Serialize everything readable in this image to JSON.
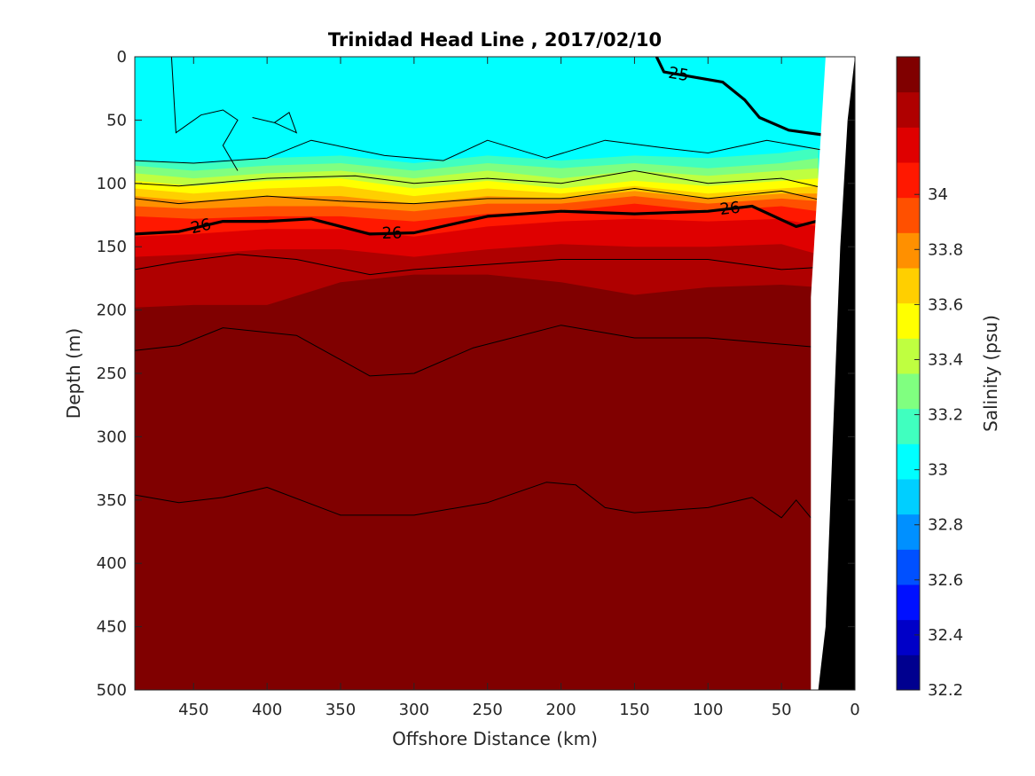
{
  "chart_data": {
    "type": "heatmap",
    "subtype": "filled-contour-section",
    "title": "Trinidad Head Line , 2017/02/10",
    "xlabel": "Offshore Distance (km)",
    "ylabel": "Depth (m)",
    "xlim": [
      490,
      0
    ],
    "x_reversed": true,
    "ylim": [
      0,
      500
    ],
    "y_reversed": true,
    "xticks": [
      450,
      400,
      350,
      300,
      250,
      200,
      150,
      100,
      50,
      0
    ],
    "xtick_labels": [
      "450",
      "400",
      "350",
      "300",
      "250",
      "200",
      "150",
      "100",
      "50",
      "0"
    ],
    "yticks": [
      0,
      50,
      100,
      150,
      200,
      250,
      300,
      350,
      400,
      450,
      500
    ],
    "ytick_labels": [
      "0",
      "50",
      "100",
      "150",
      "200",
      "250",
      "300",
      "350",
      "400",
      "450",
      "500"
    ],
    "colorbar": {
      "label": "Salinity (psu)",
      "range": [
        32.2,
        34.5
      ],
      "step": 0.1,
      "ticks": [
        32.2,
        32.4,
        32.6,
        32.8,
        33,
        33.2,
        33.4,
        33.6,
        33.8,
        34
      ],
      "tick_labels": [
        "32.2",
        "32.4",
        "32.6",
        "32.8",
        "33",
        "33.2",
        "33.4",
        "33.6",
        "33.8",
        "34"
      ],
      "colors": [
        "#00008F",
        "#0000C8",
        "#0010FF",
        "#0050FF",
        "#0090FF",
        "#00CFFF",
        "#00FFFF",
        "#40FFBF",
        "#80FF80",
        "#BFFF40",
        "#FFFF00",
        "#FFCF00",
        "#FF9000",
        "#FF5000",
        "#FF1800",
        "#DF0000",
        "#AF0000",
        "#800000"
      ]
    },
    "layers": [
      {
        "value": 32.8,
        "depth_profile": [
          [
            490,
            0
          ],
          [
            0,
            0
          ]
        ]
      },
      {
        "value": 32.9,
        "depth_profile": [
          [
            490,
            82
          ],
          [
            440,
            84
          ],
          [
            400,
            80
          ],
          [
            350,
            78
          ],
          [
            300,
            84
          ],
          [
            250,
            78
          ],
          [
            200,
            82
          ],
          [
            150,
            78
          ],
          [
            100,
            80
          ],
          [
            50,
            76
          ],
          [
            25,
            72
          ]
        ]
      },
      {
        "value": 33.0,
        "depth_profile": [
          [
            490,
            86
          ],
          [
            450,
            90
          ],
          [
            400,
            86
          ],
          [
            350,
            84
          ],
          [
            300,
            90
          ],
          [
            250,
            84
          ],
          [
            200,
            88
          ],
          [
            150,
            84
          ],
          [
            100,
            88
          ],
          [
            50,
            84
          ],
          [
            25,
            80
          ]
        ]
      },
      {
        "value": 33.1,
        "depth_profile": [
          [
            490,
            92
          ],
          [
            450,
            96
          ],
          [
            400,
            92
          ],
          [
            350,
            90
          ],
          [
            300,
            96
          ],
          [
            250,
            90
          ],
          [
            200,
            96
          ],
          [
            150,
            90
          ],
          [
            100,
            94
          ],
          [
            50,
            90
          ],
          [
            25,
            88
          ]
        ]
      },
      {
        "value": 33.2,
        "depth_profile": [
          [
            490,
            98
          ],
          [
            450,
            102
          ],
          [
            400,
            98
          ],
          [
            350,
            96
          ],
          [
            300,
            104
          ],
          [
            250,
            98
          ],
          [
            200,
            104
          ],
          [
            150,
            98
          ],
          [
            100,
            102
          ],
          [
            50,
            98
          ],
          [
            25,
            96
          ]
        ]
      },
      {
        "value": 33.3,
        "depth_profile": [
          [
            490,
            104
          ],
          [
            450,
            108
          ],
          [
            400,
            104
          ],
          [
            350,
            102
          ],
          [
            300,
            110
          ],
          [
            250,
            104
          ],
          [
            200,
            108
          ],
          [
            150,
            102
          ],
          [
            100,
            108
          ],
          [
            50,
            104
          ],
          [
            25,
            102
          ]
        ]
      },
      {
        "value": 33.4,
        "depth_profile": [
          [
            490,
            110
          ],
          [
            450,
            114
          ],
          [
            400,
            110
          ],
          [
            350,
            110
          ],
          [
            300,
            116
          ],
          [
            250,
            110
          ],
          [
            200,
            112
          ],
          [
            150,
            106
          ],
          [
            100,
            112
          ],
          [
            50,
            108
          ],
          [
            25,
            108
          ]
        ]
      },
      {
        "value": 33.5,
        "depth_profile": [
          [
            490,
            118
          ],
          [
            450,
            120
          ],
          [
            400,
            118
          ],
          [
            350,
            118
          ],
          [
            300,
            122
          ],
          [
            250,
            116
          ],
          [
            200,
            116
          ],
          [
            150,
            110
          ],
          [
            100,
            116
          ],
          [
            50,
            112
          ],
          [
            25,
            114
          ]
        ]
      },
      {
        "value": 33.6,
        "depth_profile": [
          [
            490,
            126
          ],
          [
            450,
            128
          ],
          [
            400,
            126
          ],
          [
            350,
            126
          ],
          [
            300,
            130
          ],
          [
            250,
            124
          ],
          [
            200,
            122
          ],
          [
            150,
            116
          ],
          [
            100,
            122
          ],
          [
            50,
            118
          ],
          [
            25,
            122
          ]
        ]
      },
      {
        "value": 33.7,
        "depth_profile": [
          [
            490,
            142
          ],
          [
            450,
            140
          ],
          [
            400,
            136
          ],
          [
            350,
            136
          ],
          [
            300,
            142
          ],
          [
            250,
            134
          ],
          [
            200,
            130
          ],
          [
            150,
            128
          ],
          [
            100,
            130
          ],
          [
            50,
            128
          ],
          [
            25,
            134
          ]
        ]
      },
      {
        "value": 33.8,
        "depth_profile": [
          [
            490,
            158
          ],
          [
            450,
            156
          ],
          [
            400,
            152
          ],
          [
            350,
            152
          ],
          [
            300,
            158
          ],
          [
            250,
            152
          ],
          [
            200,
            148
          ],
          [
            150,
            150
          ],
          [
            100,
            150
          ],
          [
            50,
            148
          ],
          [
            25,
            156
          ]
        ]
      },
      {
        "value": 33.9,
        "depth_profile": [
          [
            490,
            198
          ],
          [
            450,
            196
          ],
          [
            400,
            196
          ],
          [
            350,
            178
          ],
          [
            300,
            172
          ],
          [
            250,
            172
          ],
          [
            200,
            178
          ],
          [
            150,
            188
          ],
          [
            100,
            182
          ],
          [
            50,
            180
          ],
          [
            25,
            182
          ]
        ]
      },
      {
        "value": 34.0,
        "depth_profile": [
          [
            490,
            378
          ],
          [
            470,
            350
          ],
          [
            450,
            344
          ],
          [
            430,
            390
          ],
          [
            400,
            420
          ],
          [
            350,
            432
          ],
          [
            300,
            440
          ],
          [
            250,
            426
          ],
          [
            220,
            420
          ],
          [
            200,
            328
          ],
          [
            180,
            290
          ],
          [
            160,
            310
          ],
          [
            150,
            336
          ],
          [
            120,
            310
          ],
          [
            100,
            260
          ],
          [
            80,
            290
          ],
          [
            60,
            230
          ],
          [
            40,
            240
          ],
          [
            28,
            280
          ],
          [
            25,
            290
          ]
        ]
      },
      {
        "value": 34.1,
        "depth_profile": [
          [
            490,
            480
          ],
          [
            470,
            470
          ],
          [
            450,
            490
          ],
          [
            420,
            500
          ],
          [
            220,
            500
          ],
          [
            200,
            440
          ],
          [
            180,
            470
          ],
          [
            160,
            495
          ],
          [
            100,
            500
          ],
          [
            80,
            460
          ],
          [
            60,
            440
          ],
          [
            40,
            450
          ],
          [
            28,
            480
          ],
          [
            25,
            485
          ]
        ]
      }
    ],
    "contours": [
      {
        "value": 25,
        "label": "25",
        "bold": true,
        "depth_profile": [
          [
            135,
            0
          ],
          [
            130,
            12
          ],
          [
            110,
            16
          ],
          [
            90,
            20
          ],
          [
            75,
            34
          ],
          [
            65,
            48
          ],
          [
            45,
            58
          ],
          [
            20,
            62
          ]
        ]
      },
      {
        "value": 26,
        "label": "26",
        "bold": true,
        "depth_profile": [
          [
            490,
            140
          ],
          [
            460,
            138
          ],
          [
            430,
            130
          ],
          [
            400,
            130
          ],
          [
            370,
            128
          ],
          [
            330,
            140
          ],
          [
            300,
            139
          ],
          [
            250,
            126
          ],
          [
            200,
            122
          ],
          [
            150,
            124
          ],
          [
            100,
            122
          ],
          [
            70,
            118
          ],
          [
            40,
            134
          ],
          [
            20,
            128
          ]
        ]
      },
      {
        "value": 25.5,
        "label": "",
        "bold": false,
        "depth_profile": [
          [
            490,
            82
          ],
          [
            450,
            84
          ],
          [
            400,
            80
          ],
          [
            370,
            66
          ],
          [
            320,
            78
          ],
          [
            280,
            82
          ],
          [
            250,
            66
          ],
          [
            210,
            80
          ],
          [
            170,
            66
          ],
          [
            130,
            72
          ],
          [
            100,
            76
          ],
          [
            60,
            66
          ],
          [
            20,
            74
          ]
        ]
      },
      {
        "value": 25.6,
        "label": "",
        "bold": false,
        "depth_profile": [
          [
            490,
            100
          ],
          [
            460,
            102
          ],
          [
            400,
            96
          ],
          [
            340,
            94
          ],
          [
            300,
            100
          ],
          [
            250,
            96
          ],
          [
            200,
            100
          ],
          [
            150,
            90
          ],
          [
            100,
            100
          ],
          [
            50,
            96
          ],
          [
            20,
            104
          ]
        ]
      },
      {
        "value": 25.8,
        "label": "",
        "bold": false,
        "depth_profile": [
          [
            490,
            112
          ],
          [
            460,
            116
          ],
          [
            400,
            110
          ],
          [
            350,
            114
          ],
          [
            300,
            116
          ],
          [
            250,
            112
          ],
          [
            200,
            112
          ],
          [
            150,
            104
          ],
          [
            100,
            112
          ],
          [
            50,
            106
          ],
          [
            20,
            114
          ]
        ]
      },
      {
        "value": 26.2,
        "label": "",
        "bold": false,
        "depth_profile": [
          [
            490,
            168
          ],
          [
            460,
            162
          ],
          [
            420,
            156
          ],
          [
            380,
            160
          ],
          [
            330,
            172
          ],
          [
            300,
            168
          ],
          [
            250,
            164
          ],
          [
            200,
            160
          ],
          [
            150,
            160
          ],
          [
            100,
            160
          ],
          [
            50,
            168
          ],
          [
            20,
            166
          ]
        ]
      },
      {
        "value": 26.4,
        "label": "",
        "bold": false,
        "depth_profile": [
          [
            490,
            232
          ],
          [
            460,
            228
          ],
          [
            430,
            214
          ],
          [
            380,
            220
          ],
          [
            330,
            252
          ],
          [
            300,
            250
          ],
          [
            260,
            230
          ],
          [
            200,
            212
          ],
          [
            150,
            222
          ],
          [
            100,
            222
          ],
          [
            60,
            226
          ],
          [
            20,
            230
          ]
        ]
      },
      {
        "value": 26.6,
        "label": "",
        "bold": false,
        "depth_profile": [
          [
            490,
            346
          ],
          [
            460,
            352
          ],
          [
            430,
            348
          ],
          [
            400,
            340
          ],
          [
            350,
            362
          ],
          [
            300,
            362
          ],
          [
            250,
            352
          ],
          [
            210,
            336
          ],
          [
            190,
            338
          ],
          [
            170,
            356
          ],
          [
            150,
            360
          ],
          [
            100,
            356
          ],
          [
            70,
            348
          ],
          [
            50,
            364
          ],
          [
            40,
            350
          ],
          [
            30,
            364
          ]
        ]
      }
    ],
    "local_contours": [
      {
        "label": "",
        "points": [
          [
            465,
            0
          ],
          [
            462,
            60
          ],
          [
            445,
            46
          ],
          [
            430,
            42
          ],
          [
            420,
            50
          ],
          [
            430,
            70
          ],
          [
            420,
            90
          ]
        ]
      },
      {
        "label": "",
        "points": [
          [
            410,
            48
          ],
          [
            395,
            52
          ],
          [
            385,
            44
          ],
          [
            380,
            60
          ],
          [
            395,
            52
          ]
        ]
      }
    ],
    "bathymetry": {
      "color": "#000000",
      "seafloor_km": [
        [
          0,
          0
        ],
        [
          5,
          50
        ],
        [
          10,
          150
        ],
        [
          15,
          300
        ],
        [
          20,
          450
        ],
        [
          25,
          500
        ]
      ]
    },
    "no_data_color": "#ffffff",
    "no_data_region": [
      [
        0,
        0
      ],
      [
        20,
        0
      ],
      [
        30,
        190
      ],
      [
        30,
        500
      ],
      [
        0,
        500
      ]
    ]
  }
}
